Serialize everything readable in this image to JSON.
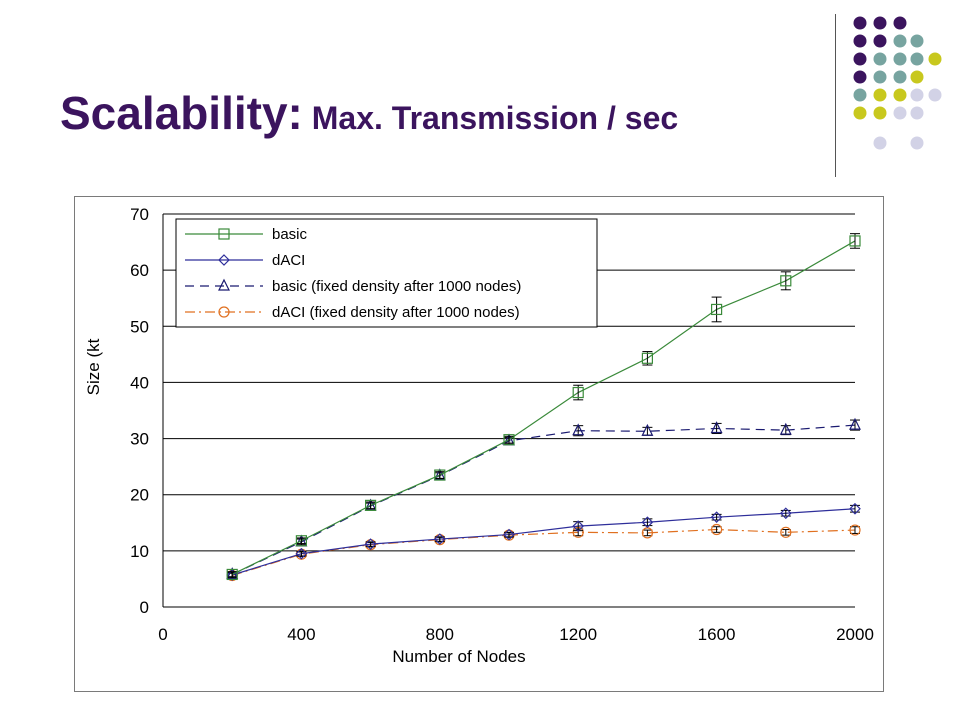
{
  "slide": {
    "title_main": "Scalability:",
    "title_sub": "Max. Transmission / sec"
  },
  "colors": {
    "title": "#3b145e",
    "decor_dots": [
      "#3b145e",
      "#77a4a0",
      "#c8c81e",
      "#d2d2e6"
    ]
  },
  "chart_data": {
    "type": "line",
    "xlabel": "Number of Nodes",
    "ylabel": "Size (kt",
    "xlim": [
      0,
      2000
    ],
    "ylim": [
      0,
      70
    ],
    "xticks": [
      0,
      400,
      800,
      1200,
      1600,
      2000
    ],
    "yticks": [
      0,
      10,
      20,
      30,
      40,
      50,
      60,
      70
    ],
    "grid": "horizontal",
    "legend_position": "top-left",
    "x": [
      200,
      400,
      600,
      800,
      1000,
      1200,
      1400,
      1600,
      1800,
      2000
    ],
    "series": [
      {
        "name": "basic",
        "color": "#3a8a3a",
        "dash": "solid",
        "marker": "square",
        "values": [
          5.8,
          11.8,
          18.1,
          23.5,
          29.8,
          38.2,
          44.3,
          53.0,
          58.1,
          65.2
        ],
        "errors": [
          0.5,
          0.5,
          0.6,
          0.6,
          0.6,
          1.3,
          1.2,
          2.2,
          1.6,
          1.3
        ]
      },
      {
        "name": "dACI",
        "color": "#2e2e9a",
        "dash": "solid",
        "marker": "diamond",
        "values": [
          5.7,
          9.5,
          11.2,
          12.1,
          12.9,
          14.4,
          15.1,
          16.0,
          16.7,
          17.5
        ],
        "errors": [
          0.4,
          0.4,
          0.4,
          0.4,
          0.4,
          0.8,
          0.6,
          0.5,
          0.5,
          0.6
        ]
      },
      {
        "name": "basic (fixed density after 1000 nodes)",
        "color": "#1a1a70",
        "dash": "dashed",
        "marker": "triangle",
        "values": [
          5.8,
          11.6,
          18.0,
          23.4,
          29.6,
          31.4,
          31.3,
          31.8,
          31.5,
          32.4
        ],
        "errors": [
          0.4,
          0.5,
          0.5,
          0.5,
          0.6,
          0.9,
          0.7,
          0.9,
          0.8,
          0.9
        ]
      },
      {
        "name": "dACI (fixed density after 1000 nodes)",
        "color": "#e07020",
        "dash": "dashdot",
        "marker": "circle",
        "values": [
          5.6,
          9.4,
          11.1,
          12.0,
          12.8,
          13.3,
          13.2,
          13.8,
          13.3,
          13.7
        ],
        "errors": [
          0.4,
          0.4,
          0.4,
          0.4,
          0.4,
          0.6,
          0.5,
          0.5,
          0.5,
          0.6
        ]
      }
    ]
  }
}
